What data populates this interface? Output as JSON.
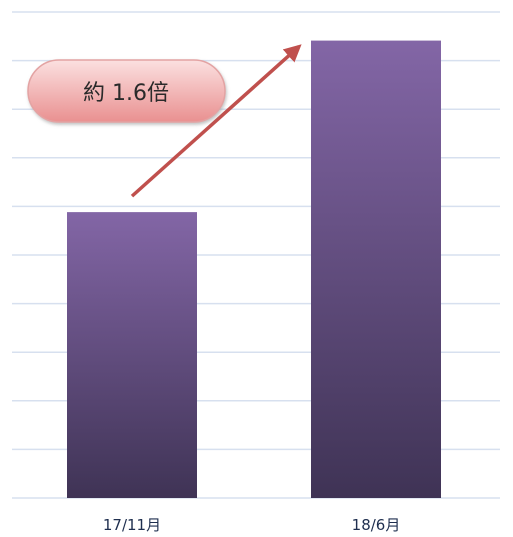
{
  "chart_data": {
    "type": "bar",
    "categories": [
      "17/11月",
      "18/6月"
    ],
    "values": [
      1.0,
      1.6
    ],
    "title": "",
    "xlabel": "",
    "ylabel": "",
    "ylim": [
      0,
      1.7
    ],
    "grid": true,
    "legend": "none",
    "annotation": {
      "text": "約 1.6倍",
      "arrow_from_category": "17/11月",
      "arrow_to_category": "18/6月"
    },
    "colors": {
      "bar_top": "#8366a6",
      "bar_bottom": "#3f3355",
      "grid": "#d7e0ef",
      "arrow": "#c0504d",
      "callout_fill_top": "#fbe0e0",
      "callout_fill_bottom": "#e99090",
      "callout_stroke": "#e3a3a3"
    }
  }
}
